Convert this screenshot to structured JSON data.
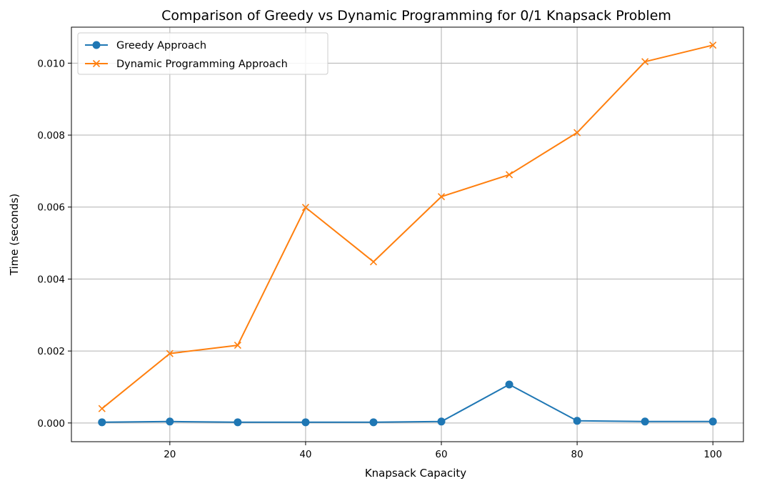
{
  "chart_data": {
    "type": "line",
    "title": "Comparison of Greedy vs Dynamic Programming for 0/1 Knapsack Problem",
    "xlabel": "Knapsack Capacity",
    "ylabel": "Time (seconds)",
    "xlim": [
      5.5,
      104.5
    ],
    "ylim": [
      -0.00052,
      0.011
    ],
    "x_ticks": [
      20,
      40,
      60,
      80,
      100
    ],
    "x_tick_labels": [
      "20",
      "40",
      "60",
      "80",
      "100"
    ],
    "y_ticks": [
      0.0,
      0.002,
      0.004,
      0.006,
      0.008,
      0.01
    ],
    "y_tick_labels": [
      "0.000",
      "0.002",
      "0.004",
      "0.006",
      "0.008",
      "0.010"
    ],
    "grid": true,
    "legend_position": "top-left",
    "x": [
      10,
      20,
      30,
      40,
      50,
      60,
      70,
      80,
      90,
      100
    ],
    "series": [
      {
        "name": "Greedy Approach",
        "color": "#1f77b4",
        "marker": "circle",
        "values": [
          2e-05,
          4e-05,
          2e-05,
          2e-05,
          2e-05,
          4e-05,
          0.00107,
          6e-05,
          4e-05,
          4e-05
        ]
      },
      {
        "name": "Dynamic Programming Approach",
        "color": "#ff7f0e",
        "marker": "x",
        "values": [
          0.0004,
          0.00193,
          0.00216,
          0.00599,
          0.00448,
          0.00629,
          0.0069,
          0.00807,
          0.01004,
          0.0105
        ]
      }
    ]
  }
}
